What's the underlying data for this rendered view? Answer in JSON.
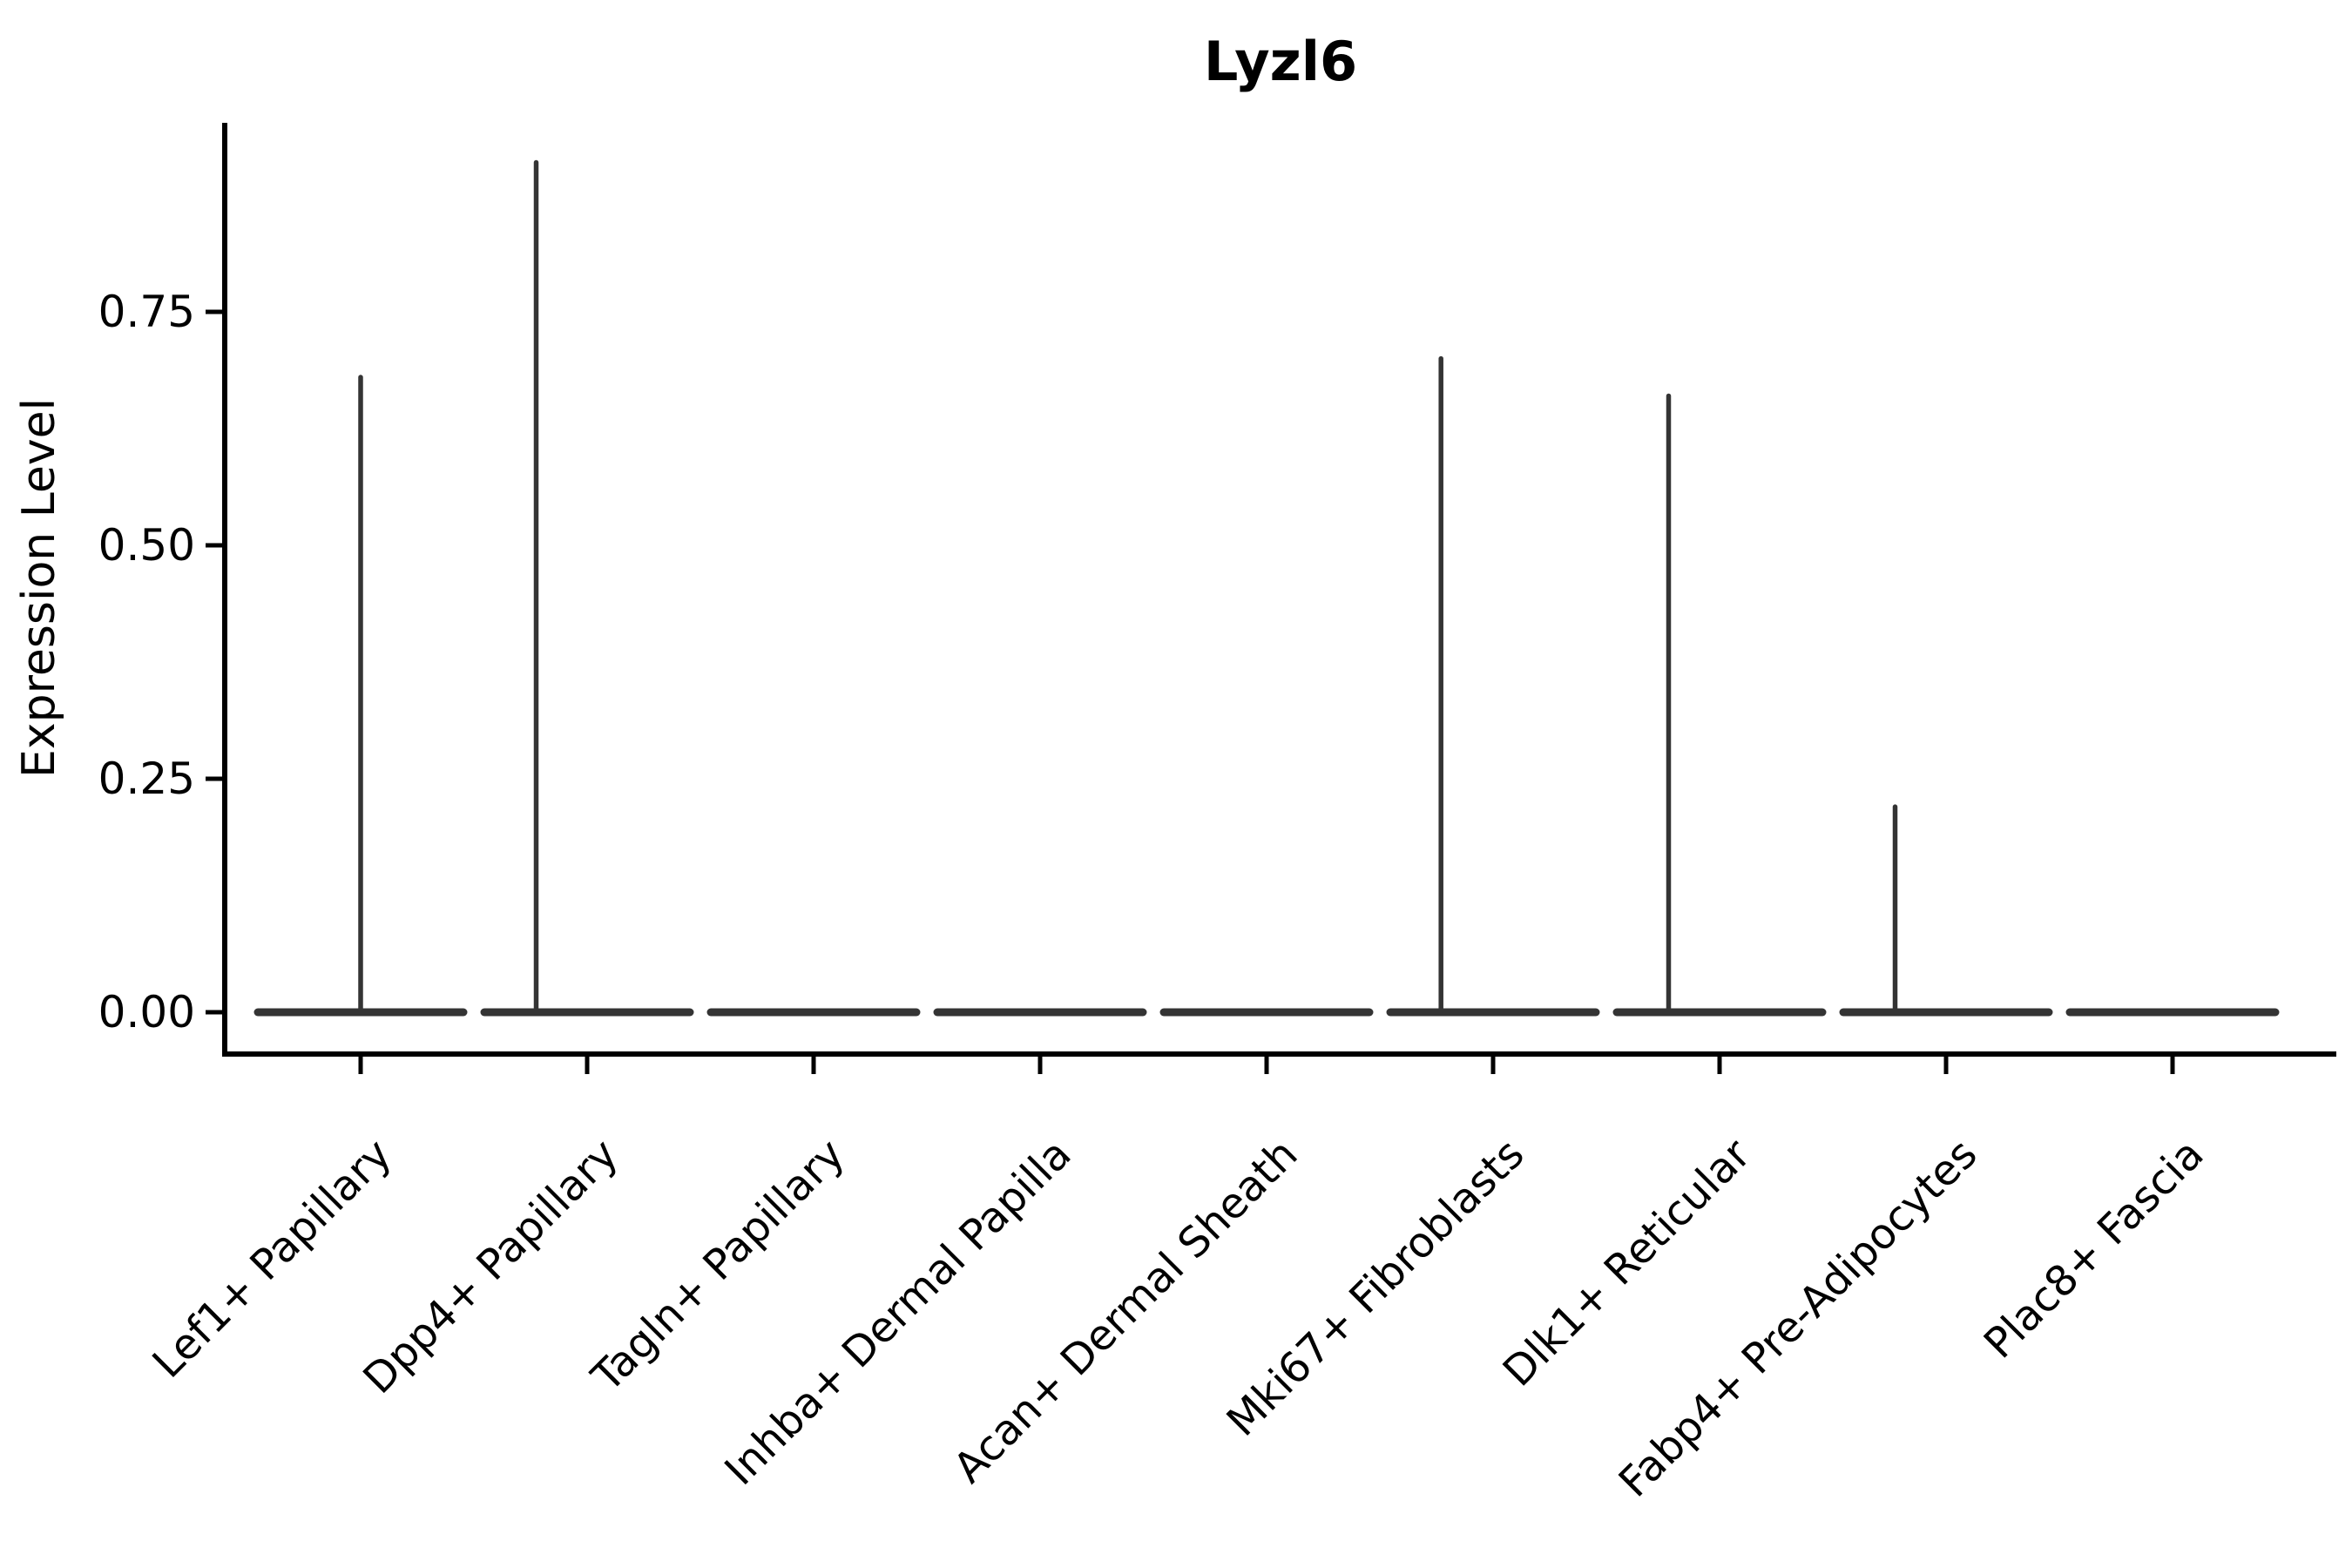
{
  "chart_data": {
    "type": "violin",
    "title": "Lyzl6",
    "xlabel": "",
    "ylabel": "Expression Level",
    "ytick_labels": [
      "0.00",
      "0.25",
      "0.50",
      "0.75"
    ],
    "ytick_values": [
      0.0,
      0.25,
      0.5,
      0.75
    ],
    "ylim": [
      0,
      0.95
    ],
    "grid": false,
    "legend": "none",
    "categories": [
      "Lef1+ Papillary",
      "Dpp4+ Papillary",
      "Tagln+ Papillary",
      "Inhba+ Dermal Papilla",
      "Acan+ Dermal Sheath",
      "Mki67+ Fibroblasts",
      "Dlk1+ Reticular",
      "Fabp4+ Pre-Adipocytes",
      "Plac8+ Fascia"
    ],
    "series": [
      {
        "cluster": "Lef1+ Papillary",
        "baseline": 0.0,
        "max_expression": 0.68
      },
      {
        "cluster": "Dpp4+ Papillary",
        "baseline": 0.0,
        "max_expression": 0.91
      },
      {
        "cluster": "Tagln+ Papillary",
        "baseline": 0.0,
        "max_expression": 0.0
      },
      {
        "cluster": "Inhba+ Dermal Papilla",
        "baseline": 0.0,
        "max_expression": 0.0
      },
      {
        "cluster": "Acan+ Dermal Sheath",
        "baseline": 0.0,
        "max_expression": 0.0
      },
      {
        "cluster": "Mki67+ Fibroblasts",
        "baseline": 0.0,
        "max_expression": 0.7
      },
      {
        "cluster": "Dlk1+ Reticular",
        "baseline": 0.0,
        "max_expression": 0.66
      },
      {
        "cluster": "Fabp4+ Pre-Adipocytes",
        "baseline": 0.0,
        "max_expression": 0.22
      },
      {
        "cluster": "Plac8+ Fascia",
        "baseline": 0.0,
        "max_expression": 0.0
      }
    ],
    "spike_offset_frac": [
      0,
      -0.225,
      null,
      null,
      null,
      -0.23,
      -0.225,
      -0.225,
      null
    ],
    "x_label_rotation_deg": 45,
    "colors": {
      "violin": "#343434",
      "axis": "#000000",
      "text": "#000000",
      "background": "#ffffff"
    }
  }
}
